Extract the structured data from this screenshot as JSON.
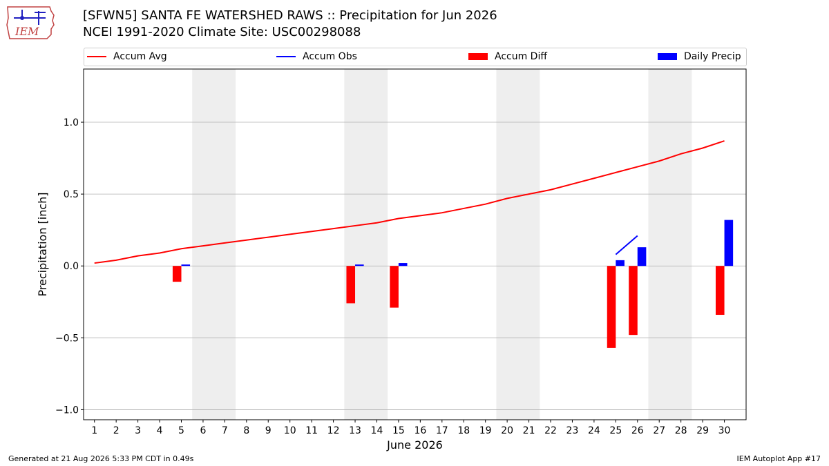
{
  "title_line1": "[SFWN5] SANTA FE WATERSHED RAWS :: Precipitation for Jun 2026",
  "title_line2": "NCEI 1991-2020 Climate Site: USC00298088",
  "logo_text": "IEM",
  "footer_left": "Generated at 21 Aug 2026 5:33 PM CDT in 0.49s",
  "footer_right": "IEM Autoplot App #17",
  "legend": [
    {
      "label": "Accum Avg",
      "kind": "line",
      "color": "#ff0000"
    },
    {
      "label": "Accum Obs",
      "kind": "line",
      "color": "#0000ff"
    },
    {
      "label": "Accum Diff",
      "kind": "box",
      "color": "#ff0000"
    },
    {
      "label": "Daily Precip",
      "kind": "box",
      "color": "#0000ff"
    }
  ],
  "chart_data": {
    "type": "bar",
    "xlabel": "June 2026",
    "ylabel": "Precipitation [inch]",
    "ylim": [
      -1.07,
      1.37
    ],
    "xlim": [
      0.5,
      31
    ],
    "grid": true,
    "legend_placement": "top",
    "x_ticks": [
      1,
      2,
      3,
      4,
      5,
      6,
      7,
      8,
      9,
      10,
      11,
      12,
      13,
      14,
      15,
      16,
      17,
      18,
      19,
      20,
      21,
      22,
      23,
      24,
      25,
      26,
      27,
      28,
      29,
      30
    ],
    "y_ticks": [
      {
        "value": -1.0,
        "label": "−1.0"
      },
      {
        "value": -0.5,
        "label": "−0.5"
      },
      {
        "value": 0.0,
        "label": "0.0"
      },
      {
        "value": 0.5,
        "label": "0.5"
      },
      {
        "value": 1.0,
        "label": "1.0"
      }
    ],
    "weekend_shading": [
      [
        6,
        7
      ],
      [
        13,
        14
      ],
      [
        20,
        21
      ],
      [
        27,
        28
      ]
    ],
    "series": [
      {
        "name": "Accum Avg",
        "type": "line",
        "color": "#ff0000",
        "x": [
          1,
          2,
          3,
          4,
          5,
          6,
          7,
          8,
          9,
          10,
          11,
          12,
          13,
          14,
          15,
          16,
          17,
          18,
          19,
          20,
          21,
          22,
          23,
          24,
          25,
          26,
          27,
          28,
          29,
          30
        ],
        "values": [
          0.02,
          0.04,
          0.07,
          0.09,
          0.12,
          0.14,
          0.16,
          0.18,
          0.2,
          0.22,
          0.24,
          0.26,
          0.28,
          0.3,
          0.33,
          0.35,
          0.37,
          0.4,
          0.43,
          0.47,
          0.5,
          0.53,
          0.57,
          0.61,
          0.65,
          0.69,
          0.73,
          0.78,
          0.82,
          0.87
        ]
      },
      {
        "name": "Accum Obs",
        "type": "line",
        "color": "#0000ff",
        "x": [
          25,
          26
        ],
        "values": [
          0.08,
          0.21
        ]
      },
      {
        "name": "Accum Diff",
        "type": "bar",
        "color": "#ff0000",
        "x": [
          5,
          13,
          15,
          25,
          26,
          30
        ],
        "values": [
          -0.11,
          -0.26,
          -0.29,
          -0.57,
          -0.48,
          -0.34
        ]
      },
      {
        "name": "Daily Precip",
        "type": "bar",
        "color": "#0000ff",
        "x": [
          5,
          13,
          15,
          25,
          26,
          30
        ],
        "values": [
          0.01,
          0.01,
          0.02,
          0.04,
          0.13,
          0.32
        ]
      }
    ]
  }
}
